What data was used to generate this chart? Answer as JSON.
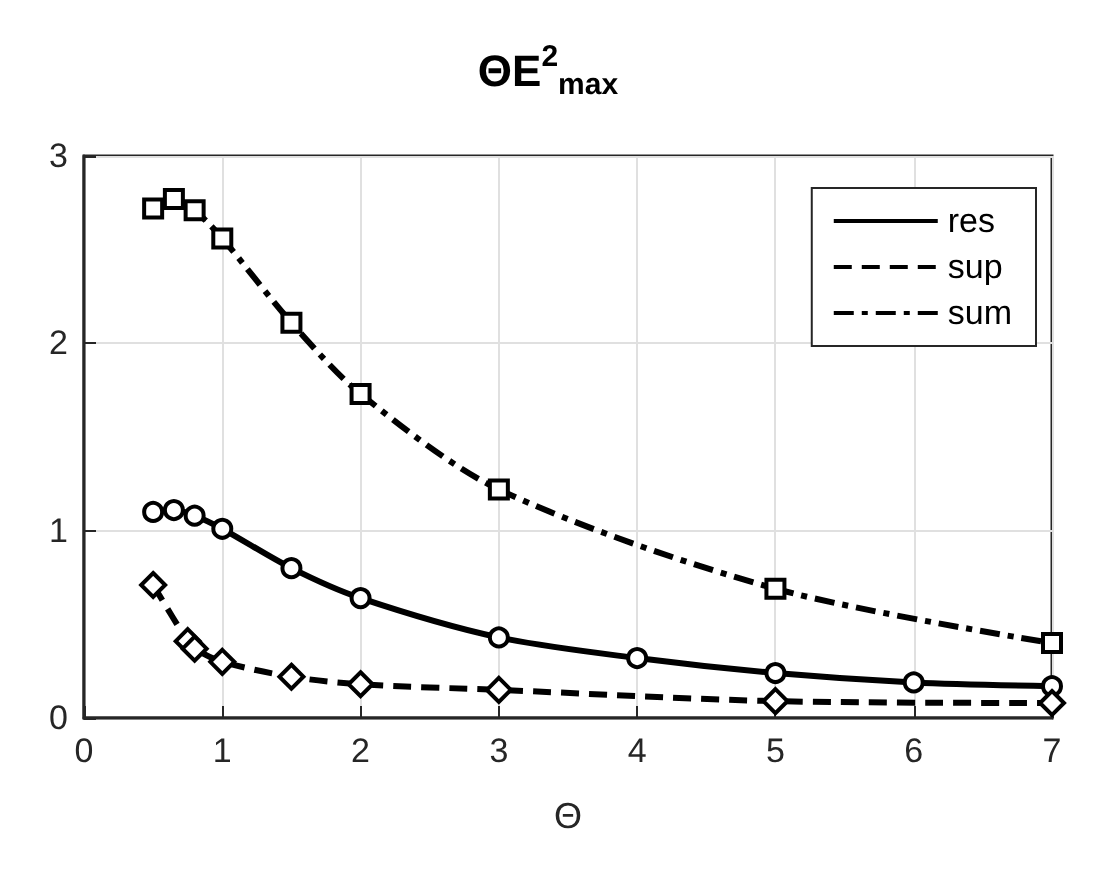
{
  "chart_data": {
    "type": "line",
    "title": "ΘE$^{2}$$_{max}$",
    "xlabel": "Θ",
    "xlim": [
      0,
      7
    ],
    "xticks": [
      0,
      1,
      2,
      3,
      4,
      5,
      6,
      7
    ],
    "ylim": [
      0,
      3
    ],
    "yticks": [
      0,
      1,
      2,
      3
    ],
    "grid": true,
    "legend": "top right",
    "series": [
      {
        "name": "res",
        "color": "#000000",
        "line_style": "solid",
        "marker": "circle",
        "x": [
          0.5,
          0.65,
          0.8,
          1,
          1.5,
          2,
          3,
          4,
          5,
          6,
          7
        ],
        "values": [
          1.1,
          1.11,
          1.08,
          1.01,
          0.8,
          0.64,
          0.43,
          0.32,
          0.24,
          0.19,
          0.17
        ]
      },
      {
        "name": "sup",
        "color": "#000000",
        "line_style": "dashed",
        "marker": "diamond",
        "x": [
          0.5,
          0.75,
          0.8,
          1,
          1.5,
          2,
          3,
          5,
          7
        ],
        "values": [
          0.71,
          0.41,
          0.37,
          0.3,
          0.22,
          0.18,
          0.15,
          0.09,
          0.08
        ]
      },
      {
        "name": "sum",
        "color": "#000000",
        "line_style": "dashdot",
        "marker": "square",
        "x": [
          0.5,
          0.65,
          0.8,
          1,
          1.5,
          2,
          3,
          5,
          7
        ],
        "values": [
          2.72,
          2.77,
          2.71,
          2.56,
          2.11,
          1.73,
          1.22,
          0.69,
          0.4
        ]
      }
    ]
  }
}
